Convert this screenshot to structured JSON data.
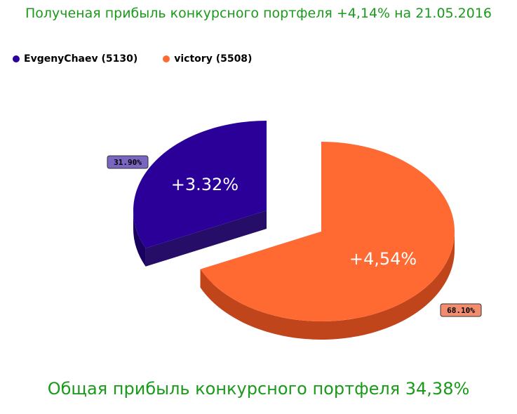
{
  "title": "Полученая прибыль конкурсного портфеля +4,14% на 21.05.2016",
  "footer": "Общая прибыль конкурсного портфеля 34,38%",
  "chart_data": {
    "type": "pie",
    "legend_position": "top-left",
    "series": [
      {
        "name": "EvgenyChaev (5130)",
        "share": 31.9,
        "share_label": "31.90%",
        "inner_label": "+3.32%",
        "color": "#2a0099",
        "side_color": "#190060",
        "label_color": "#7a66c0"
      },
      {
        "name": "victory (5508)",
        "share": 68.1,
        "share_label": "68.10%",
        "inner_label": "+4,54%",
        "color": "#ff6a33",
        "side_color": "#c1451b",
        "label_color": "#f28c6e"
      }
    ]
  }
}
